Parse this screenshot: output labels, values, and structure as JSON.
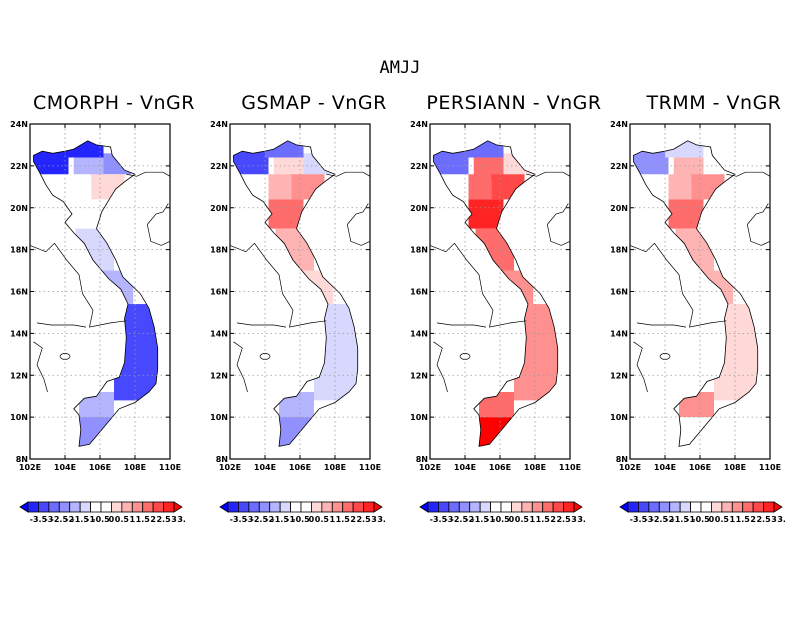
{
  "title": "AMJJ",
  "panels": [
    {
      "title": "CMORPH - VnGR",
      "pattern": "cmorph"
    },
    {
      "title": "GSMAP - VnGR",
      "pattern": "gsmap"
    },
    {
      "title": "PERSIANN - VnGR",
      "pattern": "persiann"
    },
    {
      "title": "TRMM - VnGR",
      "pattern": "trmm"
    }
  ],
  "axes": {
    "lat_labels": [
      "24N",
      "22N",
      "20N",
      "18N",
      "16N",
      "14N",
      "12N",
      "10N",
      "8N"
    ],
    "lon_labels": [
      "102E",
      "104E",
      "106E",
      "108E",
      "110E"
    ],
    "lat_range": [
      8,
      24
    ],
    "lon_range": [
      102,
      110
    ],
    "grid": "dotted"
  },
  "colorbar": {
    "labels": [
      "-3.5",
      "-3",
      "-2.5",
      "-2",
      "-1.5",
      "-1",
      "-0.5",
      "0",
      "0.5",
      "1",
      "1.5",
      "2",
      "2.5",
      "3",
      "3.5"
    ],
    "colors": [
      "#0000ff",
      "#2424ff",
      "#4848ff",
      "#6c6cff",
      "#9090ff",
      "#b4b4ff",
      "#d8d8ff",
      "#ffffff",
      "#ffffff",
      "#ffd8d8",
      "#ffb4b4",
      "#ff9090",
      "#ff6c6c",
      "#ff4848",
      "#ff2424",
      "#ff0000"
    ],
    "extend": "both"
  }
}
